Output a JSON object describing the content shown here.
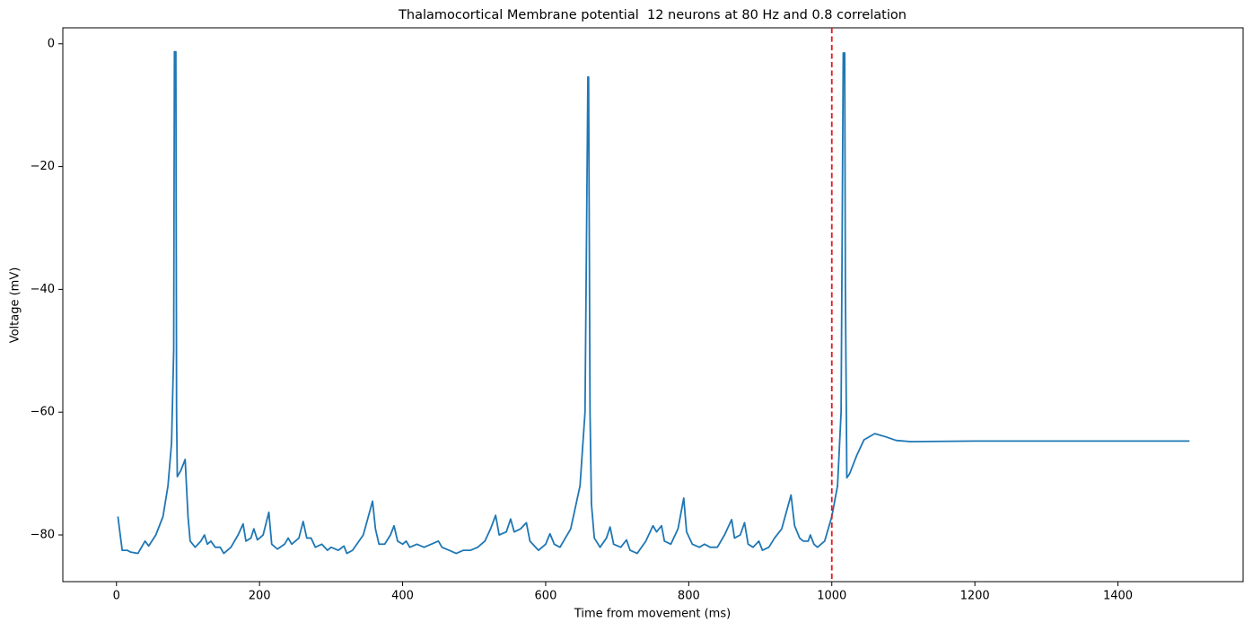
{
  "chart_data": {
    "type": "line",
    "title": "Thalamocortical Membrane potential  12 neurons at 80 Hz and 0.8 correlation",
    "x_label": "Time from movement (ms)",
    "y_label": "Voltage (mV)",
    "xlim": [
      -75,
      1575
    ],
    "ylim": [
      -87.6,
      2.6
    ],
    "xticks": [
      0,
      200,
      400,
      600,
      800,
      1000,
      1200,
      1400
    ],
    "yticks": [
      {
        "value": -80,
        "label": "−80"
      },
      {
        "value": -60,
        "label": "−60"
      },
      {
        "value": -40,
        "label": "−40"
      },
      {
        "value": -20,
        "label": "−20"
      },
      0
    ],
    "grid": false,
    "vline": {
      "x": 1000,
      "color": "#e31a1c",
      "style": "dashed"
    },
    "series": [
      {
        "color": "#1f77b4",
        "x": [
          2,
          8,
          15,
          20,
          30,
          40,
          45,
          55,
          65,
          72,
          77,
          80,
          81,
          83,
          84,
          85,
          90,
          96,
          100,
          103,
          110,
          118,
          123,
          127,
          132,
          138,
          145,
          150,
          160,
          170,
          177,
          181,
          188,
          192,
          197,
          205,
          213,
          217,
          225,
          235,
          240,
          245,
          255,
          261,
          266,
          272,
          278,
          287,
          295,
          300,
          310,
          318,
          322,
          330,
          345,
          358,
          362,
          367,
          375,
          383,
          388,
          393,
          400,
          405,
          410,
          420,
          430,
          440,
          450,
          455,
          465,
          475,
          485,
          495,
          505,
          515,
          523,
          530,
          535,
          545,
          551,
          556,
          565,
          573,
          578,
          590,
          600,
          606,
          612,
          620,
          635,
          648,
          655,
          659,
          660,
          662,
          664,
          668,
          676,
          685,
          690,
          695,
          705,
          713,
          718,
          728,
          740,
          750,
          755,
          762,
          766,
          775,
          785,
          793,
          797,
          805,
          815,
          822,
          830,
          840,
          850,
          860,
          864,
          872,
          878,
          883,
          890,
          898,
          903,
          912,
          920,
          930,
          943,
          948,
          955,
          960,
          967,
          970,
          975,
          980,
          990,
          1000,
          1008,
          1013,
          1016,
          1018,
          1019,
          1021,
          1025,
          1035,
          1045,
          1060,
          1075,
          1090,
          1110,
          1200,
          1500
        ],
        "values": [
          -77,
          -82.5,
          -82.5,
          -82.8,
          -83,
          -81,
          -81.8,
          -80,
          -77,
          -72,
          -65,
          -50,
          -1.3,
          -1.3,
          -60,
          -70.5,
          -69.5,
          -67.7,
          -77,
          -81,
          -82,
          -81,
          -80,
          -81.5,
          -81,
          -82,
          -82,
          -83,
          -82,
          -80,
          -78.2,
          -81,
          -80.5,
          -79,
          -80.8,
          -80,
          -76.3,
          -81.5,
          -82.3,
          -81.5,
          -80.5,
          -81.5,
          -80.5,
          -77.8,
          -80.5,
          -80.5,
          -82,
          -81.5,
          -82.5,
          -82,
          -82.5,
          -81.8,
          -83,
          -82.5,
          -80,
          -74.5,
          -79,
          -81.5,
          -81.5,
          -80,
          -78.5,
          -81,
          -81.5,
          -81,
          -82,
          -81.5,
          -82,
          -81.5,
          -81,
          -82,
          -82.5,
          -83,
          -82.5,
          -82.5,
          -82,
          -81,
          -79,
          -76.8,
          -80,
          -79.5,
          -77.4,
          -79.5,
          -79,
          -78,
          -81,
          -82.5,
          -81.5,
          -79.8,
          -81.5,
          -82,
          -79,
          -72,
          -60,
          -5.4,
          -5.4,
          -60,
          -75,
          -80.5,
          -82,
          -80.5,
          -78.7,
          -81.5,
          -82,
          -80.8,
          -82.5,
          -83,
          -81,
          -78.5,
          -79.5,
          -78.5,
          -81,
          -81.5,
          -79,
          -74,
          -79.5,
          -81.5,
          -82,
          -81.5,
          -82,
          -82,
          -80,
          -77.5,
          -80.5,
          -80,
          -78,
          -81.5,
          -82,
          -81,
          -82.5,
          -82,
          -80.5,
          -79,
          -73.5,
          -78.5,
          -80.5,
          -81,
          -81,
          -80,
          -81.5,
          -82,
          -81,
          -77,
          -72,
          -60,
          -1.5,
          -1.5,
          -40,
          -70.7,
          -70,
          -67,
          -64.5,
          -63.5,
          -64,
          -64.6,
          -64.8,
          -64.7,
          -64.7
        ]
      }
    ]
  }
}
